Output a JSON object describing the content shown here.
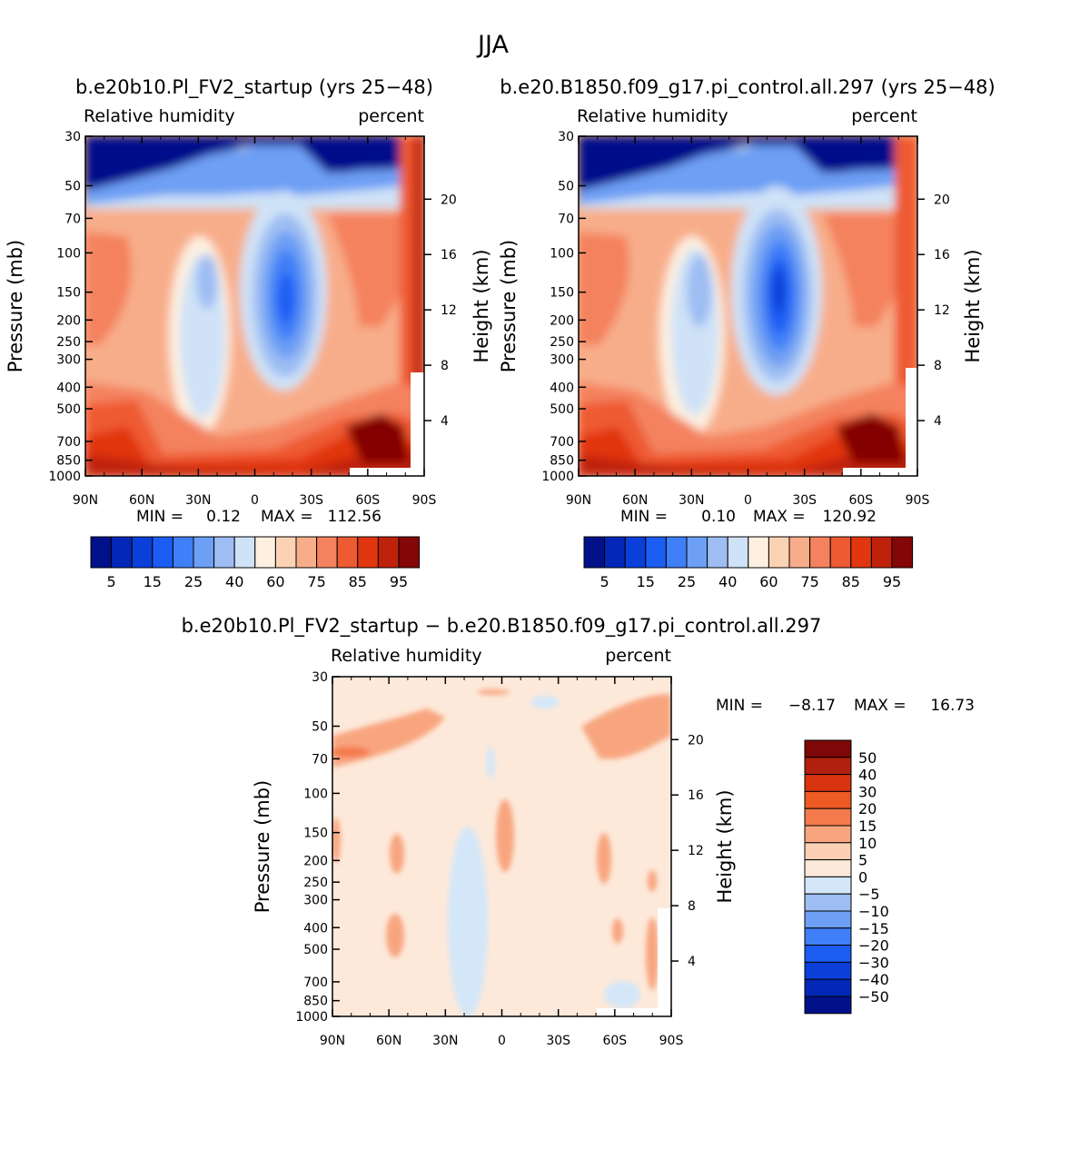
{
  "title": "JJA",
  "chart_data": [
    {
      "type": "heatmap",
      "subtitle": "b.e20b10.Pl_FV2_startup (yrs 25−48)",
      "left_label": "Relative humidity",
      "right_label": "percent",
      "ylabel": "Pressure (mb)",
      "ylabel_right": "Height (km)",
      "x_ticks": [
        "90N",
        "60N",
        "30N",
        "0",
        "30S",
        "60S",
        "90S"
      ],
      "y_ticks": [
        30,
        50,
        70,
        100,
        150,
        200,
        250,
        300,
        400,
        500,
        700,
        850,
        1000
      ],
      "y_ticks_right": [
        20,
        16,
        12,
        8,
        4
      ],
      "ylim": [
        30,
        1000
      ],
      "min_label": "MIN =",
      "min": "0.12",
      "max_label": "MAX =",
      "max": "112.56",
      "colorbar_labels": [
        "5",
        "15",
        "25",
        "40",
        "60",
        "75",
        "85",
        "95"
      ]
    },
    {
      "type": "heatmap",
      "subtitle": "b.e20.B1850.f09_g17.pi_control.all.297 (yrs 25−48)",
      "left_label": "Relative humidity",
      "right_label": "percent",
      "ylabel": "Pressure (mb)",
      "ylabel_right": "Height (km)",
      "x_ticks": [
        "90N",
        "60N",
        "30N",
        "0",
        "30S",
        "60S",
        "90S"
      ],
      "y_ticks": [
        30,
        50,
        70,
        100,
        150,
        200,
        250,
        300,
        400,
        500,
        700,
        850,
        1000
      ],
      "y_ticks_right": [
        20,
        16,
        12,
        8,
        4
      ],
      "ylim": [
        30,
        1000
      ],
      "min_label": "MIN =",
      "min": "0.10",
      "max_label": "MAX =",
      "max": "120.92",
      "colorbar_labels": [
        "5",
        "15",
        "25",
        "40",
        "60",
        "75",
        "85",
        "95"
      ]
    },
    {
      "type": "heatmap",
      "subtitle": "b.e20b10.Pl_FV2_startup − b.e20.B1850.f09_g17.pi_control.all.297",
      "left_label": "Relative humidity",
      "right_label": "percent",
      "ylabel": "Pressure (mb)",
      "ylabel_right": "Height (km)",
      "x_ticks": [
        "90N",
        "60N",
        "30N",
        "0",
        "30S",
        "60S",
        "90S"
      ],
      "y_ticks": [
        30,
        50,
        70,
        100,
        150,
        200,
        250,
        300,
        400,
        500,
        700,
        850,
        1000
      ],
      "y_ticks_right": [
        20,
        16,
        12,
        8,
        4
      ],
      "ylim": [
        30,
        1000
      ],
      "min_label": "MIN =",
      "min": "−8.17",
      "max_label": "MAX =",
      "max": "16.73",
      "colorbar_labels": [
        "50",
        "40",
        "30",
        "20",
        "15",
        "10",
        "5",
        "0",
        "−5",
        "−10",
        "−15",
        "−20",
        "−30",
        "−40",
        "−50"
      ]
    }
  ],
  "palettes": {
    "rh": [
      "#00118a",
      "#0328b8",
      "#0b3fd9",
      "#1b5df3",
      "#3f7ff7",
      "#6d9ff4",
      "#9dbdf3",
      "#cfe2f7",
      "#fdf0e1",
      "#fcd2b5",
      "#f8ad8a",
      "#f4825e",
      "#ee5a32",
      "#e1360f",
      "#c0210a",
      "#840606"
    ],
    "diff": [
      "#00118a",
      "#0328b8",
      "#0b3fd9",
      "#1b5df3",
      "#3f7ff7",
      "#6d9ff4",
      "#9dbdf3",
      "#d4e7f8",
      "#fde9da",
      "#fbd0b5",
      "#f8a57f",
      "#f47a4d",
      "#ee5a24",
      "#d93410",
      "#b0200c",
      "#7e0808"
    ]
  }
}
